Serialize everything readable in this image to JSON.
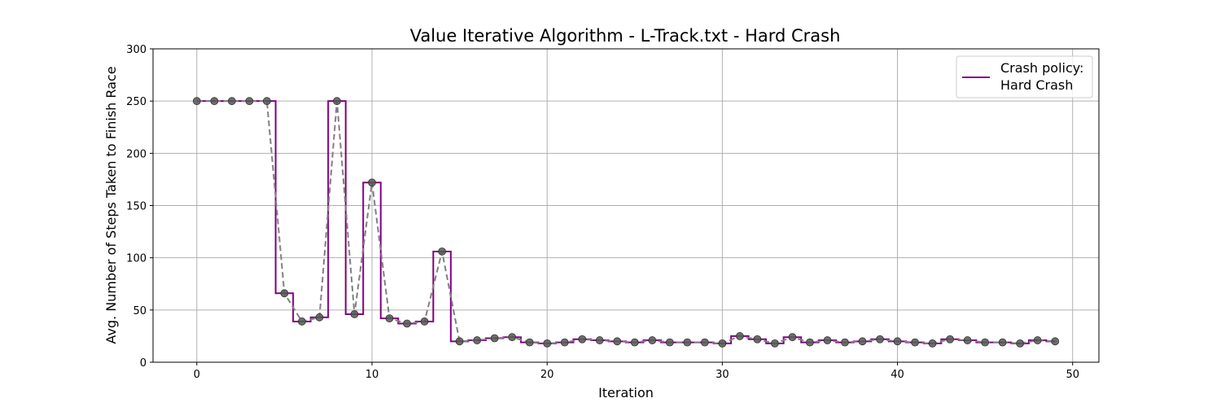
{
  "chart_data": {
    "type": "line",
    "title": "Value Iterative Algorithm - L-Track.txt - Hard Crash",
    "xlabel": "Iteration",
    "ylabel": "Avg. Number of Steps Taken to Finish Race",
    "xlim": [
      -2.5,
      51.5
    ],
    "ylim": [
      0,
      300
    ],
    "xticks": [
      0,
      10,
      20,
      30,
      40,
      50
    ],
    "yticks": [
      0,
      50,
      100,
      150,
      200,
      250,
      300
    ],
    "grid": true,
    "legend": {
      "placement": "top-right",
      "lines": [
        "Crash policy:",
        "Hard Crash"
      ]
    },
    "x": [
      0,
      1,
      2,
      3,
      4,
      5,
      6,
      7,
      8,
      9,
      10,
      11,
      12,
      13,
      14,
      15,
      16,
      17,
      18,
      19,
      20,
      21,
      22,
      23,
      24,
      25,
      26,
      27,
      28,
      29,
      30,
      31,
      32,
      33,
      34,
      35,
      36,
      37,
      38,
      39,
      40,
      41,
      42,
      43,
      44,
      45,
      46,
      47,
      48,
      49
    ],
    "series": [
      {
        "name": "Crash policy: Hard Crash",
        "style": "step-mid",
        "color": "#800080",
        "values": [
          250,
          250,
          250,
          250,
          250,
          66,
          39,
          43,
          250,
          46,
          172,
          42,
          37,
          39,
          106,
          20,
          21,
          23,
          24,
          19,
          18,
          19,
          22,
          21,
          20,
          19,
          21,
          19,
          19,
          19,
          18,
          25,
          22,
          18,
          24,
          19,
          21,
          19,
          20,
          22,
          20,
          19,
          18,
          22,
          21,
          19,
          19,
          18,
          21,
          20
        ]
      },
      {
        "style": "dashed-markers",
        "color": "#808080",
        "marker_color": "#555555",
        "values": [
          250,
          250,
          250,
          250,
          250,
          66,
          39,
          43,
          250,
          46,
          172,
          42,
          37,
          39,
          106,
          20,
          21,
          23,
          24,
          19,
          18,
          19,
          22,
          21,
          20,
          19,
          21,
          19,
          19,
          19,
          18,
          25,
          22,
          18,
          24,
          19,
          21,
          19,
          20,
          22,
          20,
          19,
          18,
          22,
          21,
          19,
          19,
          18,
          21,
          20
        ]
      }
    ]
  }
}
